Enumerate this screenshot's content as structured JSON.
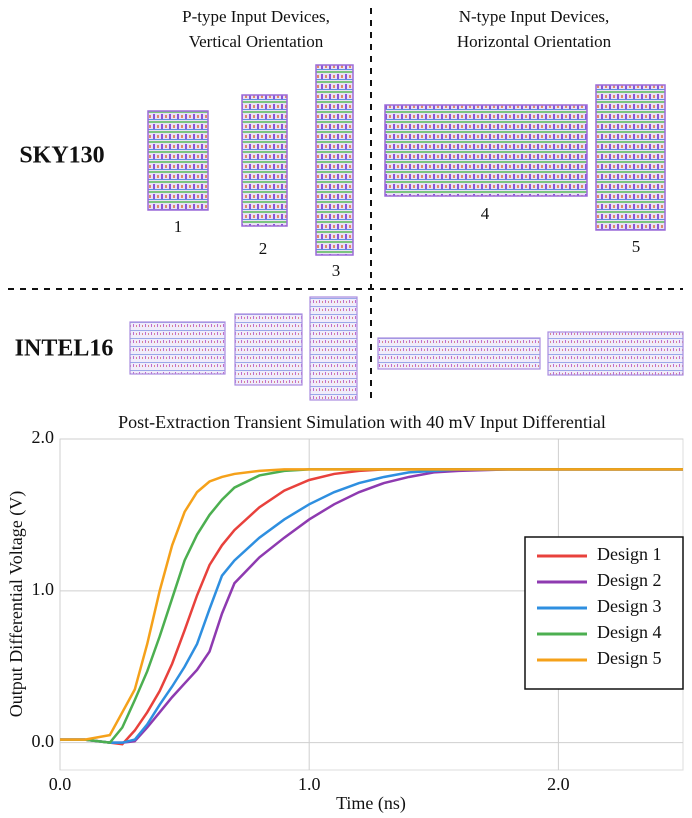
{
  "layout": {
    "column_headers": [
      [
        "P-type Input Devices,",
        "Vertical Orientation"
      ],
      [
        "N-type Input Devices,",
        "Horizontal Orientation"
      ]
    ],
    "row_labels": [
      "SKY130",
      "INTEL16"
    ],
    "design_numbers": [
      "1",
      "2",
      "3",
      "4",
      "5"
    ]
  },
  "chart_data": {
    "type": "line",
    "title": "Post-Extraction Transient Simulation with 40 mV Input Differential",
    "x_label": "Time (ns)",
    "y_label": "Output Differential Voltage (V)",
    "x": [
      0,
      0.1,
      0.2,
      0.25,
      0.3,
      0.35,
      0.4,
      0.45,
      0.5,
      0.55,
      0.6,
      0.65,
      0.7,
      0.8,
      0.9,
      1.0,
      1.1,
      1.2,
      1.3,
      1.4,
      1.5,
      1.6,
      1.8,
      2.0,
      2.5
    ],
    "series": [
      {
        "name": "Design 1",
        "color": "#e8413c",
        "values": [
          0.02,
          0.02,
          0.0,
          -0.01,
          0.08,
          0.2,
          0.34,
          0.52,
          0.74,
          0.97,
          1.17,
          1.3,
          1.4,
          1.55,
          1.66,
          1.73,
          1.77,
          1.79,
          1.8,
          1.8,
          1.8,
          1.8,
          1.8,
          1.8,
          1.8
        ]
      },
      {
        "name": "Design 2",
        "color": "#8e3ab0",
        "values": [
          0.02,
          0.02,
          0.0,
          0.0,
          0.01,
          0.1,
          0.2,
          0.3,
          0.39,
          0.48,
          0.6,
          0.85,
          1.05,
          1.22,
          1.35,
          1.47,
          1.57,
          1.65,
          1.71,
          1.75,
          1.78,
          1.79,
          1.8,
          1.8,
          1.8
        ]
      },
      {
        "name": "Design 3",
        "color": "#2e8fe0",
        "values": [
          0.02,
          0.02,
          0.0,
          0.0,
          0.02,
          0.12,
          0.25,
          0.37,
          0.5,
          0.65,
          0.88,
          1.1,
          1.2,
          1.35,
          1.47,
          1.57,
          1.65,
          1.71,
          1.75,
          1.78,
          1.79,
          1.8,
          1.8,
          1.8,
          1.8
        ]
      },
      {
        "name": "Design 4",
        "color": "#4caf50",
        "values": [
          0.02,
          0.02,
          0.0,
          0.1,
          0.28,
          0.47,
          0.7,
          0.95,
          1.2,
          1.37,
          1.5,
          1.6,
          1.68,
          1.76,
          1.79,
          1.8,
          1.8,
          1.8,
          1.8,
          1.8,
          1.8,
          1.8,
          1.8,
          1.8,
          1.8
        ]
      },
      {
        "name": "Design 5",
        "color": "#f5a11a",
        "values": [
          0.02,
          0.02,
          0.05,
          0.2,
          0.35,
          0.65,
          1.0,
          1.3,
          1.52,
          1.65,
          1.72,
          1.75,
          1.77,
          1.79,
          1.8,
          1.8,
          1.8,
          1.8,
          1.8,
          1.8,
          1.8,
          1.8,
          1.8,
          1.8,
          1.8
        ]
      }
    ],
    "xlim": [
      0,
      2.5
    ],
    "ylim": [
      -0.18,
      2.0
    ],
    "xticks": [
      {
        "value": 0,
        "label": "0.0"
      },
      {
        "value": 1,
        "label": "1.0"
      },
      {
        "value": 2,
        "label": "2.0"
      }
    ],
    "yticks": [
      {
        "value": 0,
        "label": "0.0"
      },
      {
        "value": 1,
        "label": "1.0"
      },
      {
        "value": 2,
        "label": "2.0"
      }
    ],
    "grid": true,
    "legend": "right"
  }
}
